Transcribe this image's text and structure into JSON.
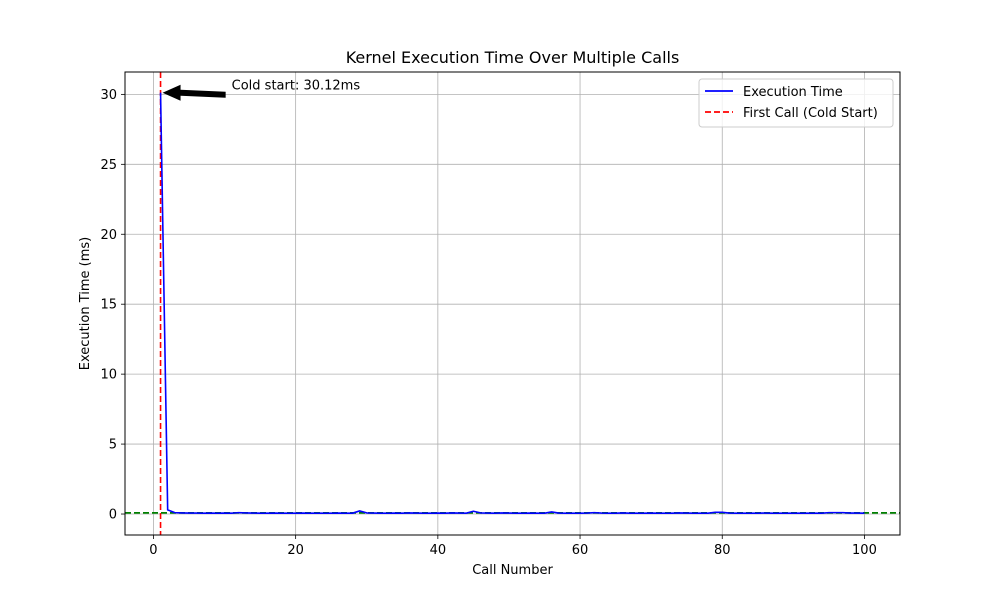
{
  "chart_data": {
    "type": "line",
    "title": "Kernel Execution Time Over Multiple Calls",
    "xlabel": "Call Number",
    "ylabel": "Execution Time (ms)",
    "xlim": [
      -4,
      105
    ],
    "ylim": [
      -1.5,
      31.6
    ],
    "xticks": [
      0,
      20,
      40,
      60,
      80,
      100
    ],
    "yticks": [
      0,
      5,
      10,
      15,
      20,
      25,
      30
    ],
    "grid": true,
    "legend_position": "top-right",
    "series": [
      {
        "name": "Execution Time",
        "color": "#0000ff",
        "style": "solid",
        "x": [
          1,
          2,
          3,
          4,
          5,
          6,
          7,
          8,
          9,
          10,
          11,
          12,
          13,
          14,
          15,
          16,
          17,
          18,
          19,
          20,
          21,
          22,
          23,
          24,
          25,
          26,
          27,
          28,
          29,
          30,
          31,
          32,
          33,
          34,
          35,
          36,
          37,
          38,
          39,
          40,
          41,
          42,
          43,
          44,
          45,
          46,
          47,
          48,
          49,
          50,
          51,
          52,
          53,
          54,
          55,
          56,
          57,
          58,
          59,
          60,
          61,
          62,
          63,
          64,
          65,
          66,
          67,
          68,
          69,
          70,
          71,
          72,
          73,
          74,
          75,
          76,
          77,
          78,
          79,
          80,
          81,
          82,
          83,
          84,
          85,
          86,
          87,
          88,
          89,
          90,
          91,
          92,
          93,
          94,
          95,
          96,
          97,
          98,
          99,
          100
        ],
        "y": [
          30.12,
          0.3,
          0.1,
          0.08,
          0.07,
          0.07,
          0.06,
          0.07,
          0.06,
          0.07,
          0.06,
          0.1,
          0.08,
          0.07,
          0.06,
          0.06,
          0.07,
          0.06,
          0.06,
          0.06,
          0.07,
          0.06,
          0.06,
          0.06,
          0.06,
          0.07,
          0.06,
          0.06,
          0.22,
          0.08,
          0.07,
          0.06,
          0.06,
          0.07,
          0.06,
          0.08,
          0.07,
          0.06,
          0.06,
          0.07,
          0.06,
          0.08,
          0.07,
          0.06,
          0.2,
          0.08,
          0.07,
          0.06,
          0.08,
          0.07,
          0.06,
          0.06,
          0.07,
          0.06,
          0.06,
          0.15,
          0.07,
          0.06,
          0.06,
          0.06,
          0.07,
          0.1,
          0.07,
          0.06,
          0.06,
          0.08,
          0.06,
          0.06,
          0.06,
          0.07,
          0.06,
          0.06,
          0.06,
          0.08,
          0.07,
          0.06,
          0.06,
          0.06,
          0.12,
          0.12,
          0.07,
          0.06,
          0.06,
          0.06,
          0.06,
          0.07,
          0.06,
          0.06,
          0.06,
          0.06,
          0.06,
          0.06,
          0.06,
          0.06,
          0.1,
          0.1,
          0.1,
          0.07,
          0.07,
          0.06
        ]
      },
      {
        "name": "First Call (Cold Start)",
        "color": "#ff0000",
        "style": "dashed",
        "type": "vline",
        "x": 1
      },
      {
        "color": "#008000",
        "style": "dashed",
        "type": "hline",
        "y": 0.08
      }
    ],
    "legend": [
      {
        "label": "Execution Time",
        "color": "#0000ff",
        "style": "solid"
      },
      {
        "label": "First Call (Cold Start)",
        "color": "#ff0000",
        "style": "dashed"
      }
    ],
    "annotation": {
      "text": "Cold start: 30.12ms",
      "point": [
        1,
        30.12
      ],
      "text_at": [
        11,
        30.12
      ]
    }
  }
}
